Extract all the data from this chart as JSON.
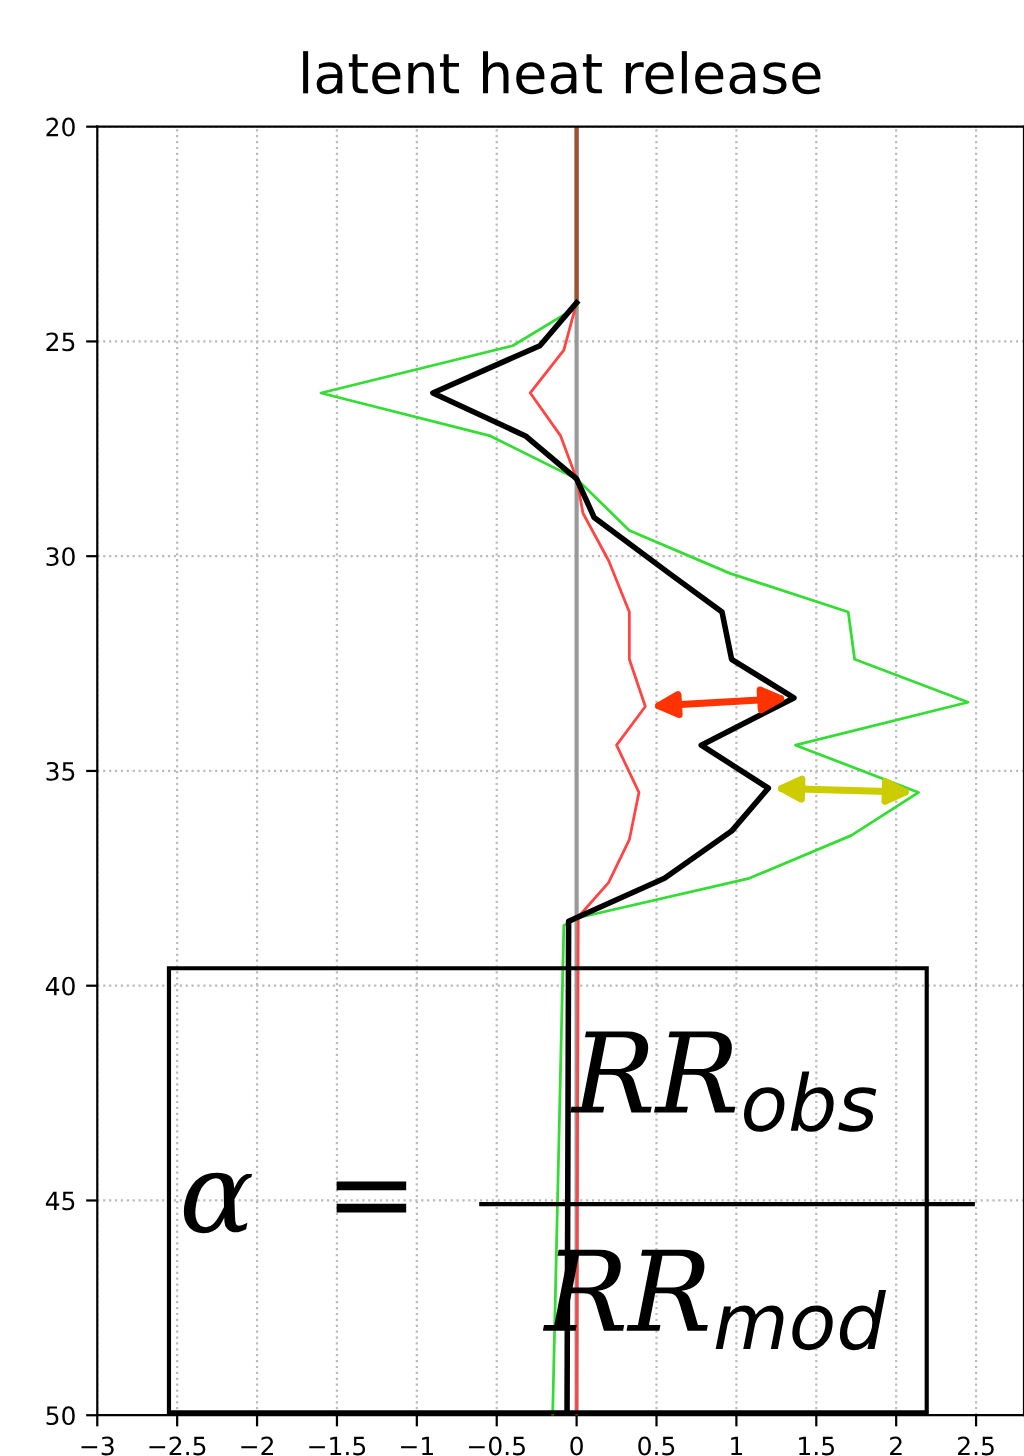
{
  "chart_data": {
    "type": "line",
    "title": "latent heat release",
    "xlim": [
      -3,
      2.8
    ],
    "ylim": [
      50,
      20
    ],
    "xticks": [
      -3,
      -2.5,
      -2,
      -1.5,
      -1,
      -0.5,
      0,
      0.5,
      1,
      1.5,
      2,
      2.5
    ],
    "yticks": [
      20,
      25,
      30,
      35,
      40,
      45,
      50
    ],
    "grid": true,
    "line_style": "solid",
    "marker": "none",
    "ref_lines": [
      {
        "axis": "x",
        "value": 0,
        "color": "#999999"
      }
    ],
    "series": [
      {
        "color": "#a0522d",
        "x": [
          0,
          0
        ],
        "values": [
          20,
          24.1
        ]
      },
      {
        "color": "#33dd33",
        "x": [
          0,
          -0.4,
          -1.6,
          -0.54,
          0,
          0.33,
          0.96,
          1.7,
          1.74,
          2.45,
          1.37,
          2.14,
          1.72,
          1.08,
          0.03,
          -0.08,
          -0.15
        ],
        "values": [
          24.2,
          25.1,
          26.2,
          27.2,
          28.2,
          29.4,
          30.4,
          31.3,
          32.4,
          33.4,
          34.4,
          35.5,
          36.5,
          37.5,
          38.4,
          38.6,
          50
        ]
      },
      {
        "color": "#ff4444",
        "x": [
          0,
          -0.08,
          -0.29,
          -0.1,
          0,
          0.04,
          0.2,
          0.33,
          0.33,
          0.43,
          0.25,
          0.39,
          0.33,
          0.2,
          0.01,
          0
        ],
        "values": [
          24.1,
          25.2,
          26.2,
          27.2,
          28.2,
          29.0,
          30.1,
          31.3,
          32.4,
          33.5,
          34.4,
          35.5,
          36.6,
          37.6,
          38.4,
          50
        ]
      },
      {
        "color": "#000000",
        "x": [
          0,
          -0.23,
          -0.9,
          -0.32,
          0,
          0.11,
          0.58,
          0.91,
          0.97,
          1.36,
          0.78,
          1.2,
          0.97,
          0.55,
          -0.05,
          -0.06
        ],
        "values": [
          24.1,
          25.1,
          26.2,
          27.2,
          28.2,
          29.1,
          30.4,
          31.3,
          32.4,
          33.3,
          34.4,
          35.4,
          36.4,
          37.5,
          38.5,
          50
        ]
      }
    ],
    "annotations": [
      "α  =",
      "RR$_{obs}$",
      "RR$_{mod}$"
    ]
  }
}
